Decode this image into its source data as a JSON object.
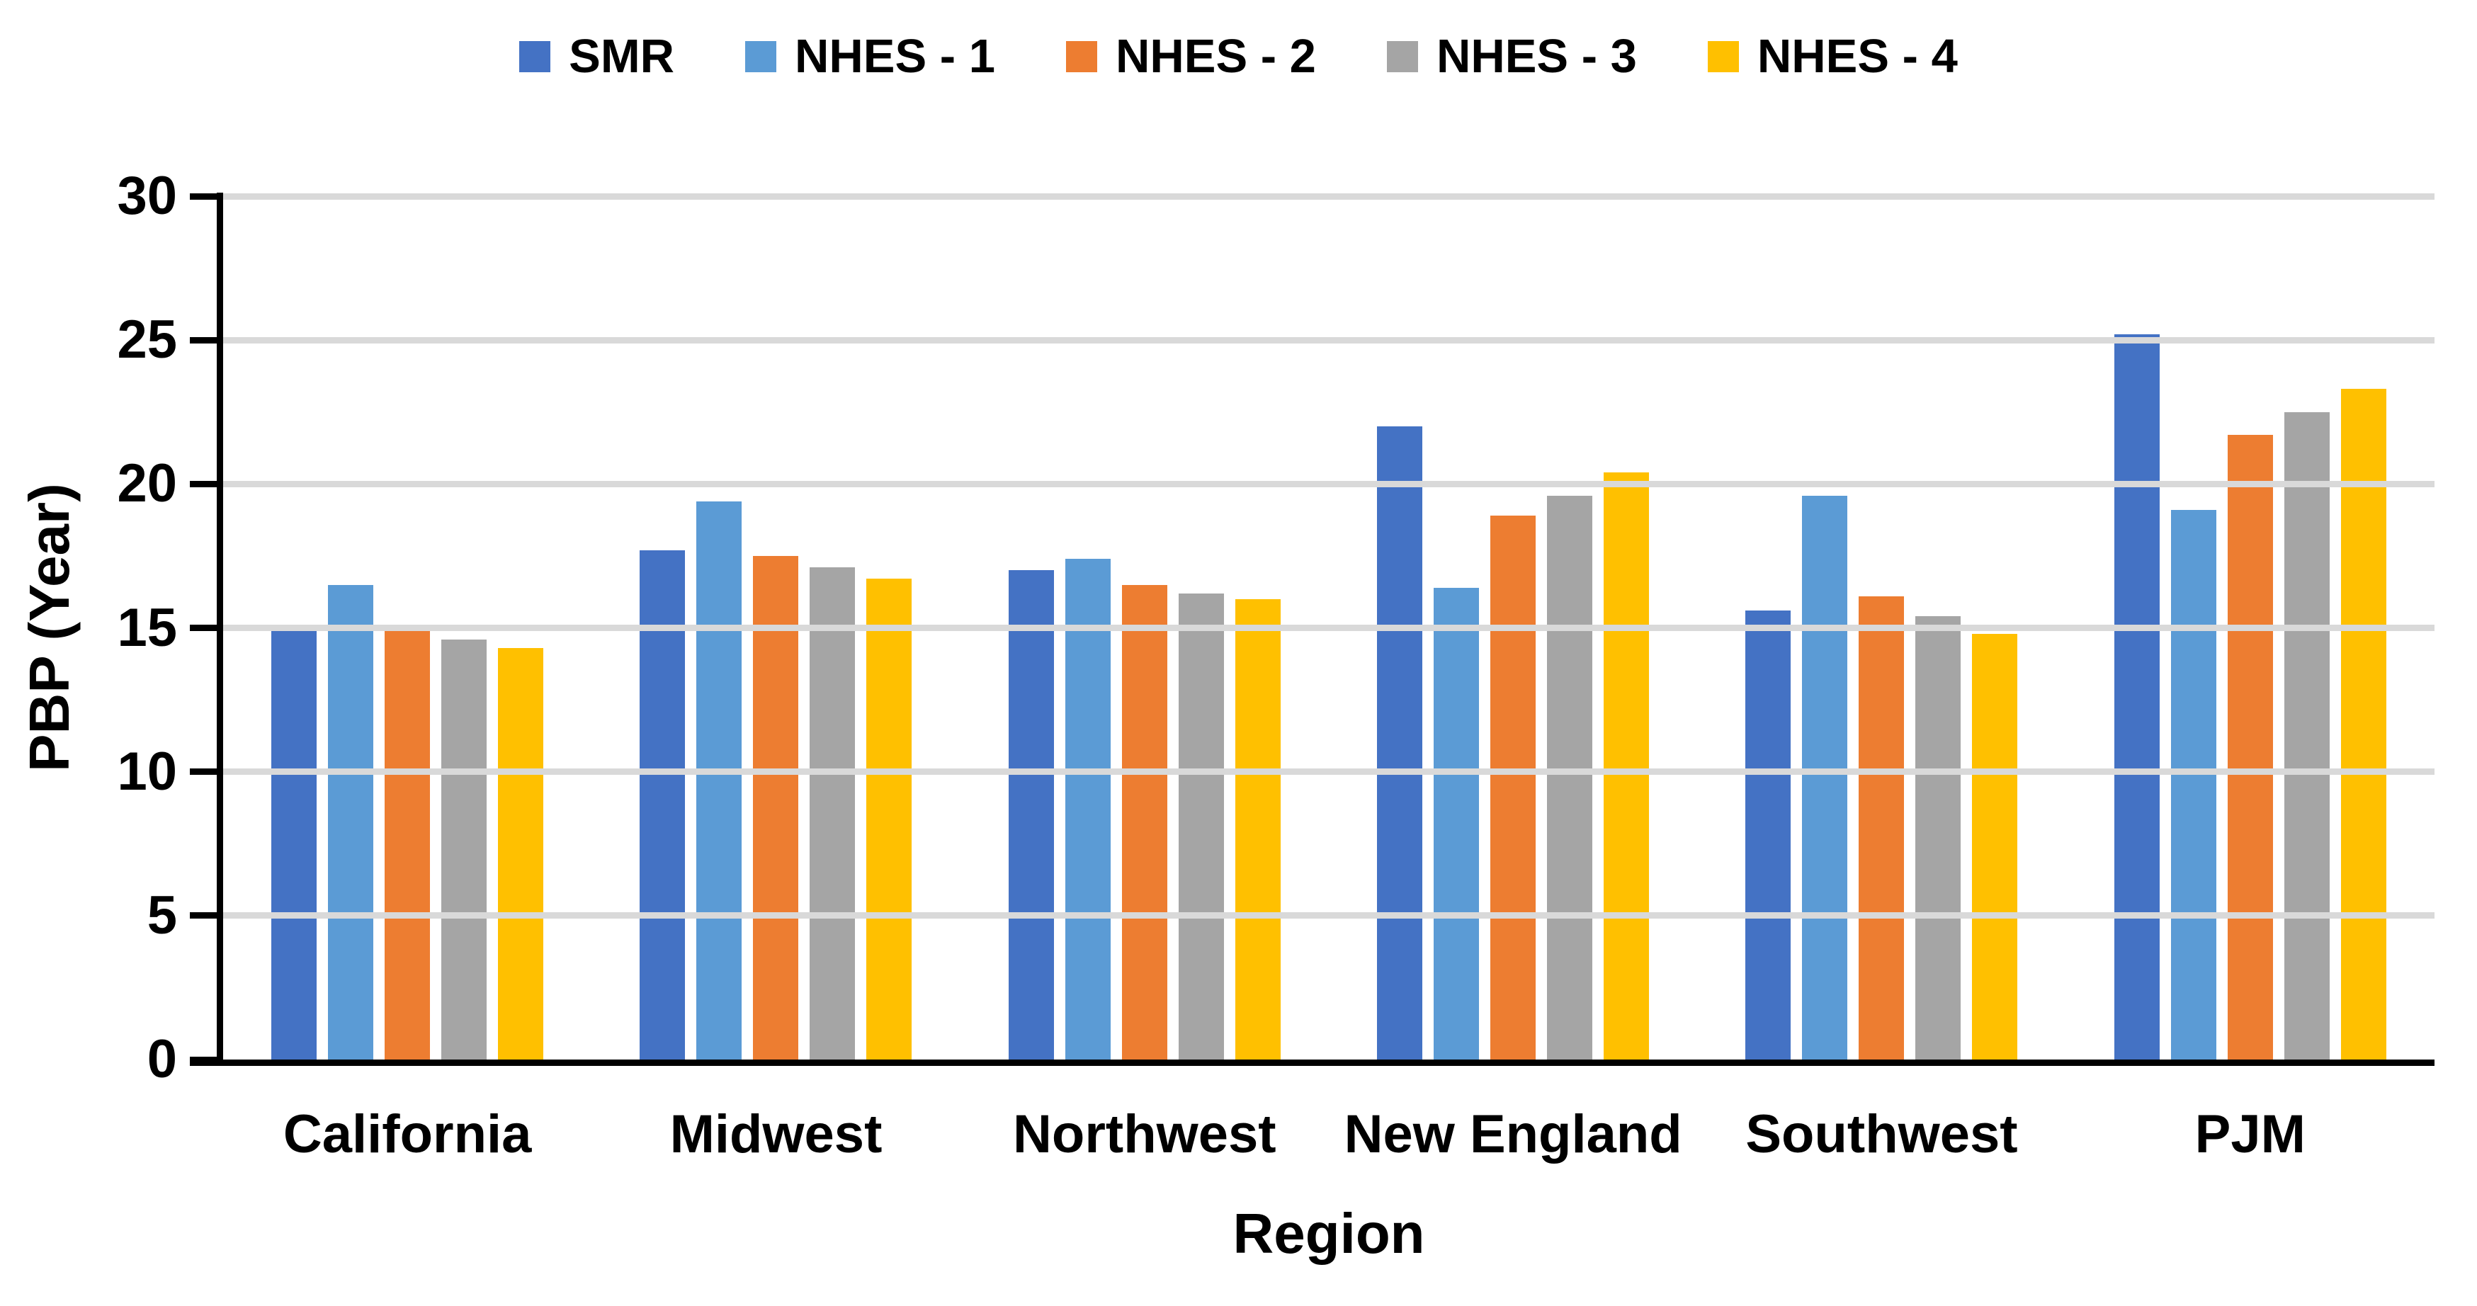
{
  "chart_data": {
    "type": "bar",
    "title": "",
    "xlabel": "Region",
    "ylabel": "PBP (Year)",
    "ylim": [
      0,
      30
    ],
    "yticks": [
      0,
      5,
      10,
      15,
      20,
      25,
      30
    ],
    "grid": true,
    "legend_position": "top",
    "categories": [
      "California",
      "Midwest",
      "Northwest",
      "New England",
      "Southwest",
      "PJM"
    ],
    "series": [
      {
        "name": "SMR",
        "color": "#4472C4",
        "values": [
          15.1,
          17.7,
          17.0,
          22.0,
          15.6,
          25.2
        ]
      },
      {
        "name": "NHES - 1",
        "color": "#5B9BD5",
        "values": [
          16.5,
          19.4,
          17.4,
          16.4,
          19.6,
          19.1
        ]
      },
      {
        "name": "NHES - 2",
        "color": "#ED7D31",
        "values": [
          15.0,
          17.5,
          16.5,
          18.9,
          16.1,
          21.7
        ]
      },
      {
        "name": "NHES - 3",
        "color": "#A5A5A5",
        "values": [
          14.6,
          17.1,
          16.2,
          19.6,
          15.4,
          22.5
        ]
      },
      {
        "name": "NHES - 4",
        "color": "#FFC000",
        "values": [
          14.3,
          16.7,
          16.0,
          20.4,
          14.8,
          23.3
        ]
      }
    ],
    "colors": {
      "gridline": "#D9D9D9",
      "axis": "#000000",
      "background": "#FFFFFF",
      "text": "#000000"
    }
  }
}
